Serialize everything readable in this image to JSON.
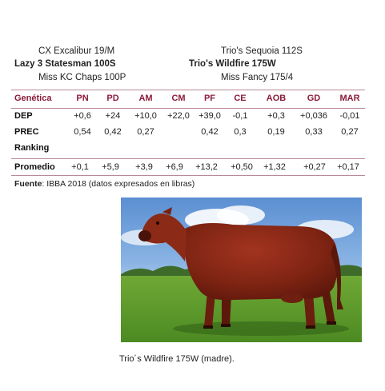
{
  "pedigree": {
    "sire_sire": "CX Excalibur 19/M",
    "sire": "Lazy 3 Statesman 100S",
    "sire_dam": "Miss KC Chaps 100P",
    "dam_sire": "Trio's Sequoia 112S",
    "dam": "Trio's Wildfire 175W",
    "dam_dam": "Miss Fancy 175/4"
  },
  "table": {
    "header": [
      "Genética",
      "PN",
      "PD",
      "AM",
      "CM",
      "PF",
      "CE",
      "AOB",
      "GD",
      "MAR"
    ],
    "rows": [
      {
        "label": "DEP",
        "values": [
          "+0,6",
          "+24",
          "+10,0",
          "+22,0",
          "+39,0",
          "-0,1",
          "+0,3",
          "+0,036",
          "-0,01"
        ]
      },
      {
        "label": "PREC",
        "values": [
          "0,54",
          "0,42",
          "0,27",
          "",
          "0,42",
          "0,3",
          "0,19",
          "0,33",
          "0,27"
        ]
      },
      {
        "label": "Ranking",
        "values": [
          "",
          "",
          "",
          "",
          "",
          "",
          "",
          "",
          ""
        ]
      }
    ],
    "average": {
      "label": "Promedio",
      "values": [
        "+0,1",
        "+5,9",
        "+3,9",
        "+6,9",
        "+13,2",
        "+0,50",
        "+1,32",
        "+0,27",
        "+0,17"
      ]
    },
    "colors": {
      "header": "#8b1c3a",
      "rule": "#b98a96"
    }
  },
  "source": {
    "label": "Fuente",
    "text": ": IBBA 2018 (datos expresados en libras)"
  },
  "photo": {
    "subject": "red-angus-cow"
  },
  "caption": "Trio´s Wildfire 175W (madre)."
}
